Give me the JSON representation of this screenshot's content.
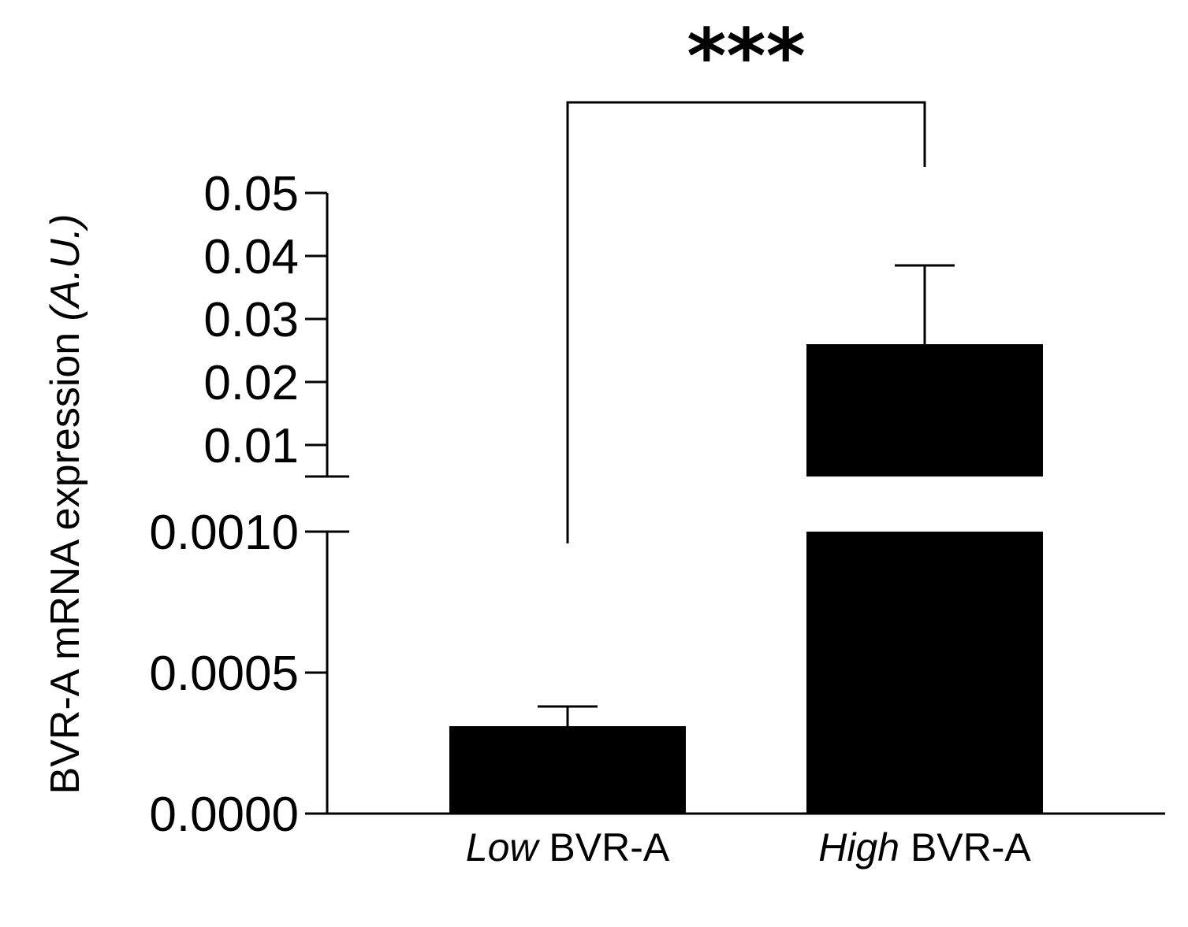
{
  "chart_data": {
    "type": "bar",
    "categories": [
      {
        "emph": "Low",
        "rest": " BVR-A"
      },
      {
        "emph": "High",
        "rest": " BVR-A"
      }
    ],
    "values": [
      0.00031,
      0.026
    ],
    "error_upper": [
      0.00038,
      0.0385
    ],
    "ylabel": {
      "main": "BVR-A mRNA expression ",
      "unit": "(A.U.)"
    },
    "axis_break": true,
    "ylim_lower": [
      0,
      0.001
    ],
    "ylim_upper": [
      0.005,
      0.05
    ],
    "yticks_lower": [
      "0.0000",
      "0.0005",
      "0.0010"
    ],
    "yticks_upper": [
      "0.01",
      "0.02",
      "0.03",
      "0.04",
      "0.05"
    ],
    "significance": {
      "label": "***",
      "between": [
        0,
        1
      ]
    },
    "bar_color": "#000000"
  }
}
